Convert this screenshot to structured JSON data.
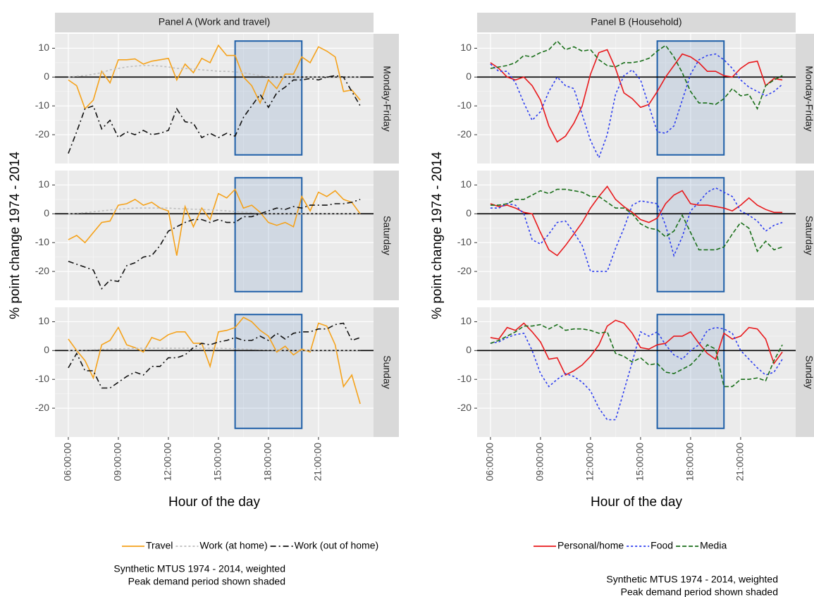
{
  "chart_data": [
    {
      "type": "line",
      "title": "Panel A (Work and travel)",
      "xlabel": "Hour of the day",
      "ylabel": "% point change 1974 - 2014",
      "caption": [
        "Synthetic MTUS 1974 - 2014, weighted",
        "Peak demand period shown shaded"
      ],
      "xlim": [
        5.2,
        24.3
      ],
      "xticks": [
        {
          "value": 6,
          "label": "06:00:00"
        },
        {
          "value": 9,
          "label": "09:00:00"
        },
        {
          "value": 12,
          "label": "12:00:00"
        },
        {
          "value": 15,
          "label": "15:00:00"
        },
        {
          "value": 18,
          "label": "18:00:00"
        },
        {
          "value": 21,
          "label": "21:00:00"
        }
      ],
      "ylim": [
        -30,
        15
      ],
      "yticks": [
        -20,
        -10,
        0,
        10
      ],
      "hline": 0,
      "shade": {
        "x": [
          16,
          20
        ],
        "y": [
          -27,
          12.5
        ]
      },
      "x": [
        6,
        6.5,
        7,
        7.5,
        8,
        8.5,
        9,
        9.5,
        10,
        10.5,
        11,
        11.5,
        12,
        12.5,
        13,
        13.5,
        14,
        14.5,
        15,
        15.5,
        16,
        16.5,
        17,
        17.5,
        18,
        18.5,
        19,
        19.5,
        20,
        20.5,
        21,
        21.5,
        22,
        22.5,
        23,
        23.5
      ],
      "series": [
        {
          "name": "Travel",
          "color": "#f5a21b",
          "dash": "none"
        },
        {
          "name": "Work (at home)",
          "color": "#bdbdbd",
          "dash": "3,3"
        },
        {
          "name": "Work (out of home)",
          "color": "#111111",
          "dash": "8,4,2,4"
        }
      ],
      "facets": [
        {
          "label": "Monday-Friday",
          "values": [
            [
              -1,
              -3,
              -11,
              -8,
              2,
              -2,
              6,
              6,
              6.3,
              4.5,
              5.5,
              6,
              6.5,
              -1,
              4.5,
              1.5,
              6.5,
              5,
              11,
              7.5,
              7.5,
              0,
              -3,
              -9,
              -1,
              -4,
              1,
              1,
              7,
              5,
              10.5,
              9,
              7,
              -5,
              -4.5,
              -8
            ],
            [
              0,
              0.3,
              0.5,
              1,
              1.5,
              2.5,
              3,
              3.5,
              3.8,
              4,
              4,
              3.8,
              3.5,
              3,
              3,
              2.8,
              2.5,
              2.3,
              2,
              2,
              1.8,
              1.5,
              1,
              0.5,
              0.2,
              0,
              0,
              0,
              0,
              0,
              0,
              0,
              0,
              0,
              0,
              0
            ],
            [
              -26.5,
              -19,
              -11,
              -10,
              -18,
              -15,
              -21,
              -19,
              -20,
              -18.5,
              -20,
              -19.5,
              -18.5,
              -11,
              -15.5,
              -16,
              -21,
              -19.5,
              -21,
              -19.5,
              -20.5,
              -14,
              -10,
              -6,
              -10.5,
              -5.5,
              -3.5,
              -1,
              -1,
              -0.5,
              -1,
              0,
              0.5,
              0,
              -5,
              -10
            ]
          ]
        },
        {
          "label": "Saturday",
          "values": [
            [
              -9,
              -7.5,
              -10,
              -6.5,
              -3,
              -2.5,
              3,
              3.5,
              5,
              3,
              4,
              2,
              1,
              -14.5,
              2.5,
              -4.5,
              2,
              -2,
              7,
              5.5,
              8.5,
              2,
              3,
              0.5,
              -3,
              -4,
              -3,
              -4.5,
              6,
              1,
              7.5,
              6,
              8,
              5,
              4,
              0
            ],
            [
              0,
              0.2,
              0.4,
              0.7,
              1,
              1.3,
              1.6,
              1.8,
              2,
              2,
              2,
              2,
              2,
              1.8,
              1.7,
              1.6,
              1.5,
              1.4,
              1.2,
              1,
              0.8,
              0.6,
              0.4,
              0.2,
              0,
              0,
              0,
              0,
              0,
              0,
              0,
              0,
              0,
              0,
              0,
              0
            ],
            [
              -16.5,
              -17.5,
              -18.5,
              -19.5,
              -26,
              -23,
              -23.5,
              -18,
              -17,
              -15,
              -14.5,
              -11,
              -6,
              -4.5,
              -3,
              -2,
              -2,
              -3,
              -2,
              -3,
              -3,
              -1,
              -1,
              0,
              1,
              2,
              1.5,
              2.5,
              2,
              3,
              3,
              3,
              3.5,
              3.5,
              4,
              5
            ]
          ]
        },
        {
          "label": "Sunday",
          "values": [
            [
              4,
              0,
              -3.5,
              -9.5,
              2,
              3.5,
              8,
              2,
              1,
              -0.5,
              4.5,
              3.5,
              5.5,
              6.5,
              6.5,
              2.5,
              2.5,
              -5.5,
              6.5,
              7,
              8,
              11.5,
              10,
              7,
              5,
              -0.5,
              1.5,
              -1.5,
              0.5,
              -0.5,
              9.5,
              8.5,
              2,
              -12.5,
              -8.5,
              -18.5
            ],
            [
              0,
              0,
              0.2,
              0.3,
              0.4,
              0.5,
              0.6,
              0.7,
              0.8,
              0.8,
              0.8,
              0.8,
              0.8,
              0.8,
              0.8,
              0.8,
              0.8,
              0.8,
              0.8,
              0.7,
              0.6,
              0.5,
              0.4,
              0.3,
              0.2,
              0,
              0,
              0,
              0,
              0,
              0,
              0,
              0,
              0,
              0,
              0
            ],
            [
              -6,
              -1,
              -7,
              -7,
              -13,
              -13,
              -11,
              -9,
              -7.5,
              -8.5,
              -5.5,
              -5.5,
              -2.5,
              -2.5,
              -1.5,
              1,
              2.5,
              2,
              3,
              3.5,
              4.5,
              3.5,
              3.5,
              5,
              3.5,
              6,
              4,
              6,
              6.5,
              6.5,
              7.5,
              7.5,
              9,
              9.5,
              3.5,
              4.5
            ]
          ]
        }
      ]
    },
    {
      "type": "line",
      "title": "Panel B (Household)",
      "xlabel": "Hour of the day",
      "ylabel": "% point change 1974 - 2014",
      "caption": [
        "Synthetic MTUS 1974 - 2014, weighted",
        "Peak demand period shown shaded"
      ],
      "xlim": [
        5.2,
        24.3
      ],
      "xticks": [
        {
          "value": 6,
          "label": "06:00:00"
        },
        {
          "value": 9,
          "label": "09:00:00"
        },
        {
          "value": 12,
          "label": "12:00:00"
        },
        {
          "value": 15,
          "label": "15:00:00"
        },
        {
          "value": 18,
          "label": "18:00:00"
        },
        {
          "value": 21,
          "label": "21:00:00"
        }
      ],
      "ylim": [
        -30,
        15
      ],
      "yticks": [
        -20,
        -10,
        0,
        10
      ],
      "hline": 0,
      "shade": {
        "x": [
          16,
          20
        ],
        "y": [
          -27,
          12.5
        ]
      },
      "x": [
        6,
        6.5,
        7,
        7.5,
        8,
        8.5,
        9,
        9.5,
        10,
        10.5,
        11,
        11.5,
        12,
        12.5,
        13,
        13.5,
        14,
        14.5,
        15,
        15.5,
        16,
        16.5,
        17,
        17.5,
        18,
        18.5,
        19,
        19.5,
        20,
        20.5,
        21,
        21.5,
        22,
        22.5,
        23,
        23.5
      ],
      "series": [
        {
          "name": "Personal/home",
          "color": "#e8191c",
          "dash": "none"
        },
        {
          "name": "Food",
          "color": "#2b3cf0",
          "dash": "3,3"
        },
        {
          "name": "Media",
          "color": "#1a6f1a",
          "dash": "6,3"
        }
      ],
      "facets": [
        {
          "label": "Monday-Friday",
          "values": [
            [
              5,
              3,
              0,
              -1,
              0,
              -3,
              -8,
              -17,
              -22.5,
              -20.5,
              -16,
              -10,
              1,
              8.5,
              9.5,
              3,
              -5.5,
              -7.5,
              -10.5,
              -9.5,
              -5,
              0,
              4,
              8,
              7,
              5,
              2,
              2,
              0.5,
              0,
              3,
              5,
              5.5,
              -3,
              -0.5,
              -1
            ],
            [
              4.5,
              2,
              2,
              -2,
              -9,
              -15,
              -12,
              -5,
              0,
              -3,
              -4,
              -13,
              -22,
              -28,
              -20,
              -6,
              0.5,
              2.5,
              -1,
              -10,
              -19,
              -19.5,
              -17,
              -8,
              1,
              6,
              7.5,
              8,
              6,
              3,
              -1,
              -3.5,
              -5,
              -6.5,
              -5,
              -2.5
            ],
            [
              3,
              3.5,
              4,
              5,
              7.5,
              7,
              8.5,
              9.5,
              12.5,
              9.5,
              10.5,
              9,
              9.5,
              6,
              4,
              3.5,
              5,
              5,
              5.5,
              6.5,
              9,
              11,
              7,
              1.5,
              -5,
              -9,
              -9,
              -9.5,
              -7.5,
              -4,
              -6.5,
              -6,
              -11,
              -3,
              -1,
              0.5
            ]
          ]
        },
        {
          "label": "Saturday",
          "values": [
            [
              3.5,
              2.5,
              3,
              2,
              0.5,
              0,
              -6.5,
              -12.5,
              -14.5,
              -11,
              -7,
              -3,
              2,
              6,
              9.5,
              5,
              2.5,
              0.5,
              -2,
              -3,
              -1.5,
              3.5,
              6.5,
              8,
              3.5,
              3,
              3,
              2.5,
              2,
              1,
              3,
              5.5,
              3,
              1.5,
              0.5,
              0.5
            ],
            [
              2,
              2,
              3.5,
              3,
              0,
              -9,
              -10.5,
              -7,
              -3,
              -2.5,
              -6.5,
              -11,
              -20,
              -20,
              -20,
              -12,
              -5,
              3,
              4.5,
              4,
              3.5,
              -4,
              -14.5,
              -8,
              1,
              4,
              7.5,
              9,
              7.5,
              6,
              1,
              -0.5,
              -2.5,
              -6,
              -4,
              -3
            ],
            [
              3,
              3,
              3.5,
              5,
              5,
              6.5,
              8,
              7,
              8.5,
              8.5,
              8,
              7.5,
              6,
              6,
              4,
              2,
              2,
              0,
              -3.5,
              -5,
              -5.5,
              -8,
              -6,
              -0.5,
              -6.5,
              -12.5,
              -12.5,
              -12.5,
              -11.5,
              -7,
              -3,
              -5,
              -13,
              -9.5,
              -12.5,
              -11.5
            ]
          ]
        },
        {
          "label": "Sunday",
          "values": [
            [
              4.5,
              4,
              8,
              7,
              9.5,
              6.5,
              3,
              -3,
              -2.5,
              -8.5,
              -7,
              -5,
              -2,
              2,
              8.5,
              10.5,
              9.5,
              6,
              1,
              0.5,
              2,
              2.5,
              5,
              5,
              6.5,
              2.5,
              -1,
              -3,
              6,
              4,
              5,
              8,
              7.5,
              4,
              -4.5,
              -0.5
            ],
            [
              2.5,
              3,
              4.5,
              5.5,
              6,
              0,
              -8,
              -12.5,
              -10,
              -8,
              -9,
              -11,
              -14,
              -20,
              -24,
              -24,
              -14,
              -4,
              6.5,
              5,
              6.5,
              2,
              -1.5,
              -3,
              0,
              2,
              7,
              8,
              7.5,
              6,
              0,
              -3,
              -6,
              -8.5,
              -7.5,
              -3
            ],
            [
              2.5,
              3.5,
              5,
              6.5,
              8.5,
              8.5,
              9,
              7.5,
              9,
              7,
              7.5,
              7.5,
              7,
              6,
              6.5,
              -1,
              -2,
              -4,
              -2.5,
              -5,
              -4.5,
              -7.5,
              -8,
              -6.5,
              -5,
              -2,
              2,
              0.5,
              -12.5,
              -12.5,
              -10,
              -10,
              -9.5,
              -10.5,
              -3.5,
              2
            ]
          ]
        }
      ]
    }
  ]
}
